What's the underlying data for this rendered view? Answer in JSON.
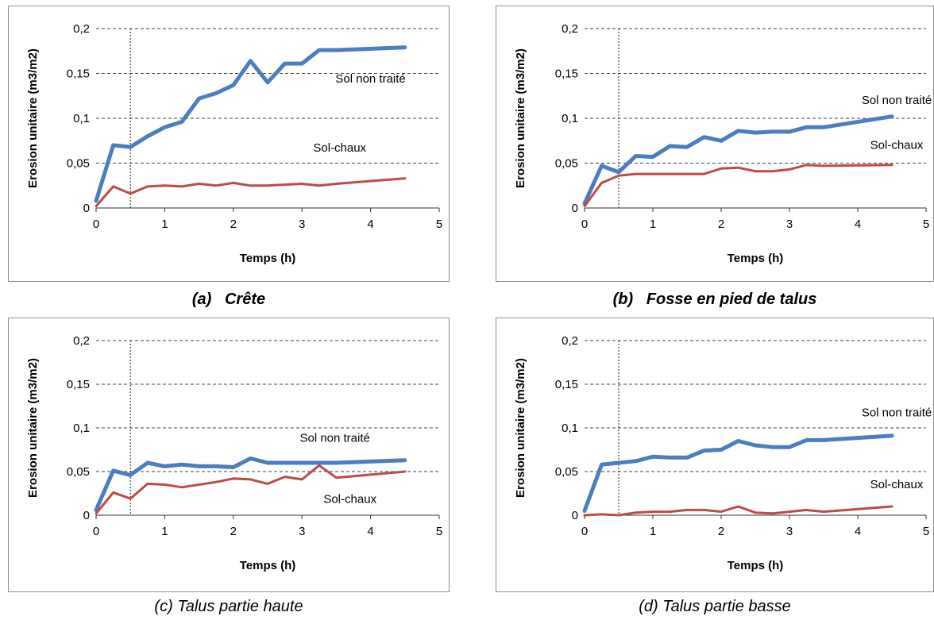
{
  "chart_data": [
    {
      "id": "a",
      "type": "line",
      "caption_letter": "(a)",
      "caption_text": "Crête",
      "xlabel": "Temps (h)",
      "ylabel": "Erosion unitaire (m3/m2)",
      "xlim": [
        0,
        5
      ],
      "ylim": [
        0,
        0.2
      ],
      "xticks": [
        "0",
        "1",
        "2",
        "3",
        "4",
        "5"
      ],
      "yticks": [
        "0",
        "0,05",
        "0,1",
        "0,15",
        "0,2"
      ],
      "vline_x": 0.5,
      "annotations": [
        {
          "text": "Sol non traité",
          "x": 4.0,
          "y": 0.14
        },
        {
          "text": "Sol-chaux",
          "x": 3.55,
          "y": 0.063
        }
      ],
      "series": [
        {
          "color": "#4a7ebf",
          "x": [
            0,
            0.25,
            0.5,
            0.75,
            1.0,
            1.25,
            1.5,
            1.75,
            2.0,
            2.25,
            2.5,
            2.75,
            3.0,
            3.25,
            3.5,
            4.5
          ],
          "y": [
            0.008,
            0.07,
            0.068,
            0.08,
            0.09,
            0.096,
            0.122,
            0.128,
            0.137,
            0.164,
            0.14,
            0.161,
            0.161,
            0.176,
            0.176,
            0.179
          ]
        },
        {
          "color": "#be4b48",
          "x": [
            0,
            0.25,
            0.5,
            0.75,
            1.0,
            1.25,
            1.5,
            1.75,
            2.0,
            2.25,
            2.5,
            2.75,
            3.0,
            3.25,
            3.5,
            4.5
          ],
          "y": [
            0.002,
            0.024,
            0.016,
            0.024,
            0.025,
            0.024,
            0.027,
            0.025,
            0.028,
            0.025,
            0.025,
            0.026,
            0.027,
            0.025,
            0.027,
            0.033
          ]
        }
      ]
    },
    {
      "id": "b",
      "type": "line",
      "caption_letter": "(b)",
      "caption_text": "Fosse en pied de talus",
      "xlabel": "Temps (h)",
      "ylabel": "Erosion unitaire (m3/m2)",
      "xlim": [
        0,
        5
      ],
      "ylim": [
        0,
        0.2
      ],
      "xticks": [
        "0",
        "1",
        "2",
        "3",
        "4",
        "5"
      ],
      "yticks": [
        "0",
        "0,05",
        "0,1",
        "0,15",
        "0,2"
      ],
      "vline_x": 0.5,
      "annotations": [
        {
          "text": "Sol non traité",
          "x": 4.57,
          "y": 0.116
        },
        {
          "text": "Sol-chaux",
          "x": 4.57,
          "y": 0.066
        }
      ],
      "series": [
        {
          "color": "#4a7ebf",
          "x": [
            0,
            0.25,
            0.5,
            0.75,
            1.0,
            1.25,
            1.5,
            1.75,
            2.0,
            2.25,
            2.5,
            2.75,
            3.0,
            3.25,
            3.5,
            4.5
          ],
          "y": [
            0.005,
            0.047,
            0.04,
            0.058,
            0.057,
            0.069,
            0.068,
            0.079,
            0.075,
            0.086,
            0.084,
            0.085,
            0.085,
            0.09,
            0.09,
            0.102
          ]
        },
        {
          "color": "#be4b48",
          "x": [
            0,
            0.25,
            0.5,
            0.75,
            1.0,
            1.25,
            1.5,
            1.75,
            2.0,
            2.25,
            2.5,
            2.75,
            3.0,
            3.25,
            3.5,
            4.5
          ],
          "y": [
            0.002,
            0.028,
            0.036,
            0.038,
            0.038,
            0.038,
            0.038,
            0.038,
            0.044,
            0.045,
            0.041,
            0.041,
            0.043,
            0.048,
            0.047,
            0.048
          ]
        }
      ]
    },
    {
      "id": "c",
      "type": "line",
      "caption_letter": "(c)",
      "caption_text": "Talus partie haute",
      "xlabel": "Temps (h)",
      "ylabel": "Erosion unitaire (m3/m2)",
      "xlim": [
        0,
        5
      ],
      "ylim": [
        0,
        0.2
      ],
      "xticks": [
        "0",
        "1",
        "2",
        "3",
        "4",
        "5"
      ],
      "yticks": [
        "0",
        "0,05",
        "0,1",
        "0,15",
        "0,2"
      ],
      "vline_x": 0.5,
      "annotations": [
        {
          "text": "Sol non traité",
          "x": 3.48,
          "y": 0.084
        },
        {
          "text": "Sol-chaux",
          "x": 3.7,
          "y": 0.014
        }
      ],
      "series": [
        {
          "color": "#4a7ebf",
          "x": [
            0,
            0.25,
            0.5,
            0.75,
            1.0,
            1.25,
            1.5,
            1.75,
            2.0,
            2.25,
            2.5,
            2.75,
            3.0,
            3.25,
            3.5,
            4.5
          ],
          "y": [
            0.006,
            0.051,
            0.046,
            0.06,
            0.056,
            0.058,
            0.056,
            0.056,
            0.055,
            0.065,
            0.06,
            0.06,
            0.06,
            0.06,
            0.06,
            0.063
          ]
        },
        {
          "color": "#be4b48",
          "x": [
            0,
            0.25,
            0.5,
            0.75,
            1.0,
            1.25,
            1.5,
            1.75,
            2.0,
            2.25,
            2.5,
            2.75,
            3.0,
            3.25,
            3.5,
            4.5
          ],
          "y": [
            0.002,
            0.026,
            0.019,
            0.036,
            0.035,
            0.032,
            0.035,
            0.038,
            0.042,
            0.041,
            0.036,
            0.044,
            0.041,
            0.057,
            0.043,
            0.05
          ]
        }
      ]
    },
    {
      "id": "d",
      "type": "line",
      "caption_letter": "(d)",
      "caption_text": "Talus partie basse",
      "xlabel": "Temps (h)",
      "ylabel": "Erosion unitaire (m3/m2)",
      "xlim": [
        0,
        5
      ],
      "ylim": [
        0,
        0.2
      ],
      "xticks": [
        "0",
        "1",
        "2",
        "3",
        "4",
        "5"
      ],
      "yticks": [
        "0",
        "0,05",
        "0,1",
        "0,15",
        "0,2"
      ],
      "vline_x": 0.5,
      "annotations": [
        {
          "text": "Sol non traité",
          "x": 4.57,
          "y": 0.113
        },
        {
          "text": "Sol-chaux",
          "x": 4.57,
          "y": 0.031
        }
      ],
      "series": [
        {
          "color": "#4a7ebf",
          "x": [
            0,
            0.25,
            0.5,
            0.75,
            1.0,
            1.25,
            1.5,
            1.75,
            2.0,
            2.25,
            2.5,
            2.75,
            3.0,
            3.25,
            3.5,
            4.5
          ],
          "y": [
            0.005,
            0.058,
            0.06,
            0.062,
            0.067,
            0.066,
            0.066,
            0.074,
            0.075,
            0.085,
            0.08,
            0.078,
            0.078,
            0.086,
            0.086,
            0.091
          ]
        },
        {
          "color": "#be4b48",
          "x": [
            0,
            0.25,
            0.5,
            0.75,
            1.0,
            1.25,
            1.5,
            1.75,
            2.0,
            2.25,
            2.5,
            2.75,
            3.0,
            3.25,
            3.5,
            4.5
          ],
          "y": [
            0.0,
            0.001,
            0.0,
            0.003,
            0.004,
            0.004,
            0.006,
            0.006,
            0.004,
            0.01,
            0.003,
            0.002,
            0.004,
            0.006,
            0.004,
            0.01
          ]
        }
      ]
    }
  ]
}
